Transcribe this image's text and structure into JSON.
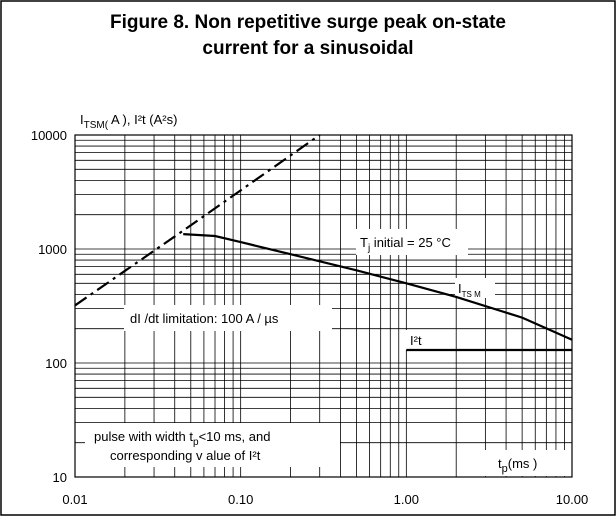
{
  "chart_data": {
    "type": "line",
    "title": [
      "Figure 8. Non repetitive surge peak on-state",
      "current for a sinusoidal"
    ],
    "y_label": [
      "I",
      "TSM(",
      " A ), I²t (A²s)"
    ],
    "x_label": [
      "t",
      "p",
      "(ms )"
    ],
    "log_x": true,
    "log_y": true,
    "grid": true,
    "minor_grid": true,
    "xlim": [
      0.01,
      10
    ],
    "ylim": [
      10,
      10000
    ],
    "xticks": [
      {
        "value": 0.01,
        "label": "0.01"
      },
      {
        "value": 0.1,
        "label": "0.10"
      },
      {
        "value": 1,
        "label": "1.00"
      },
      {
        "value": 10,
        "label": "10.00"
      }
    ],
    "yticks": [
      10,
      100,
      1000,
      10000
    ],
    "series": [
      {
        "color": "#000000",
        "dashed": true,
        "x": [
          0.01,
          0.045,
          0.3
        ],
        "values": [
          320,
          1450,
          10000
        ]
      },
      {
        "color": "#000000",
        "dashed": false,
        "x": [
          0.045,
          0.07,
          0.1,
          0.2,
          0.5,
          1,
          2,
          5,
          10
        ],
        "values": [
          1350,
          1300,
          1150,
          900,
          650,
          500,
          380,
          250,
          160
        ]
      },
      {
        "color": "#000000",
        "dashed": false,
        "x": [
          1,
          10
        ],
        "values": [
          130,
          130
        ]
      }
    ],
    "annotations": {
      "tj": [
        "T",
        "j",
        " initial = 25 °C"
      ],
      "itsm": [
        "I",
        "TS M"
      ],
      "i2t": "I²t",
      "didt": "dI /dt limitation:   100 A / µs",
      "pulse1": [
        "pulse with width t",
        "p",
        "<10 ms,  and"
      ],
      "pulse2": "corresponding v   alue of I²t"
    }
  }
}
